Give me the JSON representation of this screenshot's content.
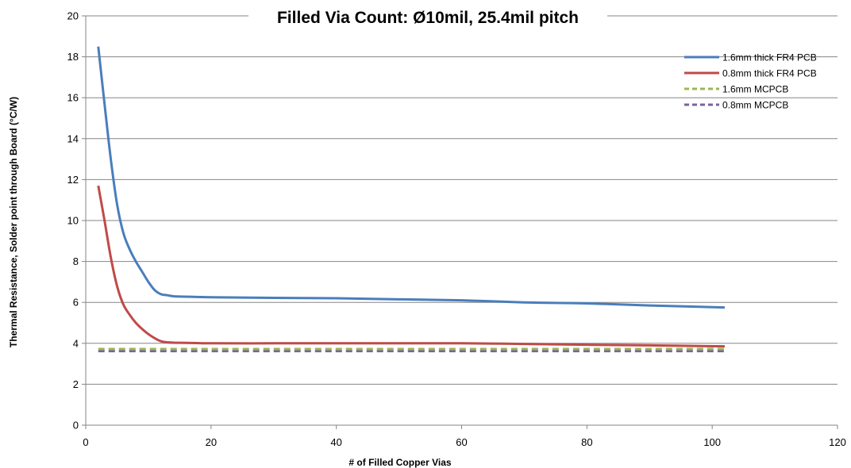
{
  "chart_data": {
    "type": "line",
    "title": "Filled Via Count: Ø10mil, 25.4mil pitch",
    "xlabel": "# of Filled Copper Vias",
    "ylabel": "Thermal Resistance, Solder point through Board (°C/W)",
    "xlim": [
      0,
      120
    ],
    "ylim": [
      0,
      20
    ],
    "xticks": [
      0,
      20,
      40,
      60,
      80,
      100,
      120
    ],
    "yticks": [
      0,
      2,
      4,
      6,
      8,
      10,
      12,
      14,
      16,
      18,
      20
    ],
    "grid": "horizontal",
    "legend_position": "top-right",
    "series": [
      {
        "name": "1.6mm thick FR4 PCB",
        "color": "#4a7ebb",
        "dash": "solid",
        "x": [
          2,
          3,
          4,
          5,
          6,
          7,
          8,
          9,
          10,
          11,
          12,
          13,
          14,
          16,
          20,
          30,
          40,
          50,
          60,
          70,
          80,
          90,
          102
        ],
        "y": [
          18.5,
          15.7,
          13.0,
          10.8,
          9.4,
          8.6,
          8.0,
          7.5,
          7.0,
          6.6,
          6.4,
          6.35,
          6.3,
          6.28,
          6.25,
          6.22,
          6.2,
          6.15,
          6.1,
          6.0,
          5.95,
          5.85,
          5.75
        ]
      },
      {
        "name": "0.8mm thick FR4 PCB",
        "color": "#be4b48",
        "dash": "solid",
        "x": [
          2,
          3,
          4,
          5,
          6,
          7,
          8,
          9,
          10,
          11,
          12,
          13,
          14,
          16,
          20,
          30,
          40,
          50,
          60,
          70,
          80,
          90,
          102
        ],
        "y": [
          11.7,
          10.0,
          8.2,
          6.8,
          5.9,
          5.4,
          5.0,
          4.7,
          4.45,
          4.25,
          4.1,
          4.05,
          4.03,
          4.02,
          4.0,
          4.0,
          4.0,
          4.0,
          4.0,
          3.97,
          3.93,
          3.9,
          3.85
        ]
      },
      {
        "name": "1.6mm MCPCB",
        "color": "#98b954",
        "dash": "dashed",
        "x": [
          2,
          102
        ],
        "y": [
          3.72,
          3.72
        ]
      },
      {
        "name": "0.8mm MCPCB",
        "color": "#7d60a0",
        "dash": "dashed",
        "x": [
          2,
          102
        ],
        "y": [
          3.62,
          3.62
        ]
      }
    ]
  }
}
